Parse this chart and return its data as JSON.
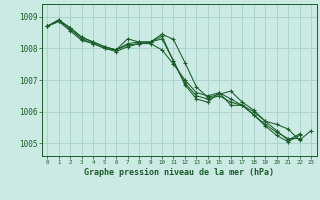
{
  "bg_color": "#cceae4",
  "grid_color": "#aad4cc",
  "line_color": "#1a5c2a",
  "title": "Graphe pression niveau de la mer (hPa)",
  "xlim": [
    -0.5,
    23.5
  ],
  "ylim": [
    1004.6,
    1009.4
  ],
  "yticks": [
    1005,
    1006,
    1007,
    1008,
    1009
  ],
  "xticks": [
    0,
    1,
    2,
    3,
    4,
    5,
    6,
    7,
    8,
    9,
    10,
    11,
    12,
    13,
    14,
    15,
    16,
    17,
    18,
    19,
    20,
    21,
    22,
    23
  ],
  "series": [
    [
      1008.7,
      1008.85,
      1008.65,
      1008.35,
      1008.2,
      1008.05,
      1007.95,
      1008.1,
      1008.15,
      1008.2,
      1008.45,
      1008.28,
      1007.55,
      1006.78,
      1006.45,
      1006.55,
      1006.65,
      1006.3,
      1006.05,
      1005.7,
      1005.6,
      1005.45,
      1005.1,
      1005.4
    ],
    [
      1008.7,
      1008.9,
      1008.6,
      1008.3,
      1008.15,
      1008.0,
      1007.95,
      1008.3,
      1008.2,
      1008.2,
      1008.38,
      1007.6,
      1006.85,
      1006.4,
      1006.3,
      1006.6,
      1006.4,
      1006.2,
      1005.9,
      1005.6,
      1005.35,
      1005.15,
      1005.15,
      null
    ],
    [
      1008.7,
      1008.9,
      1008.65,
      1008.35,
      1008.2,
      1008.05,
      1007.95,
      1008.15,
      1008.2,
      1008.2,
      1008.3,
      1007.6,
      1006.9,
      1006.5,
      1006.4,
      1006.5,
      1006.3,
      1006.2,
      1005.9,
      1005.55,
      1005.25,
      1005.05,
      1005.25,
      null
    ],
    [
      1008.7,
      1008.85,
      1008.55,
      1008.25,
      1008.15,
      1008.0,
      1007.9,
      1008.05,
      1008.15,
      1008.15,
      1007.95,
      1007.5,
      1007.0,
      1006.6,
      1006.5,
      1006.6,
      1006.2,
      1006.2,
      1006.0,
      1005.7,
      1005.4,
      1005.1,
      1005.3,
      null
    ]
  ]
}
